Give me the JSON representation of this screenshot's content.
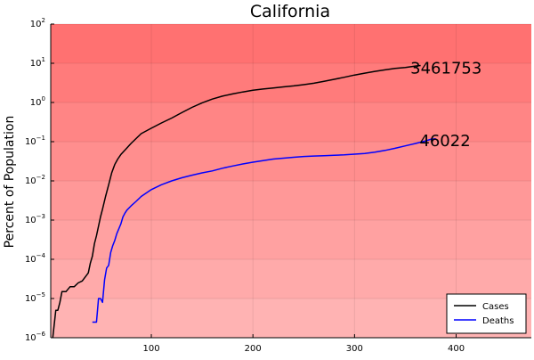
{
  "chart_data": {
    "type": "line",
    "title": "California",
    "xlabel": "",
    "ylabel": "Percent of Population",
    "x_scale": "linear",
    "y_scale": "log",
    "xlim": [
      1,
      474
    ],
    "ylim": [
      1e-06,
      100
    ],
    "x_ticks": [
      {
        "value": 100,
        "label": "100"
      },
      {
        "value": 200,
        "label": "200"
      },
      {
        "value": 300,
        "label": "300"
      },
      {
        "value": 400,
        "label": "400"
      }
    ],
    "y_ticks": [
      {
        "value": 1e-06,
        "base": "10",
        "exp": "−6"
      },
      {
        "value": 1e-05,
        "base": "10",
        "exp": "−5"
      },
      {
        "value": 0.0001,
        "base": "10",
        "exp": "−4"
      },
      {
        "value": 0.001,
        "base": "10",
        "exp": "−3"
      },
      {
        "value": 0.01,
        "base": "10",
        "exp": "−2"
      },
      {
        "value": 0.1,
        "base": "10",
        "exp": "−1"
      },
      {
        "value": 1,
        "base": "10",
        "exp": "0"
      },
      {
        "value": 10,
        "base": "10",
        "exp": "1"
      },
      {
        "value": 100,
        "base": "10",
        "exp": "2"
      }
    ],
    "grid": true,
    "legend_position": "bottom-right",
    "background_bands": {
      "note": "red shaded bands, darker toward the top",
      "colors": [
        "#ffb3b3",
        "#ffaaaa",
        "#ffa1a1",
        "#ff9898",
        "#ff8e8e",
        "#ff8585",
        "#ff7b7b",
        "#ff7171"
      ],
      "top_color": "#ff6767"
    },
    "series": [
      {
        "name": "Cases",
        "color": "#000000",
        "x": [
          3,
          6,
          8,
          10,
          12,
          16,
          20,
          24,
          28,
          32,
          38,
          40,
          42,
          44,
          46,
          48,
          50,
          52,
          55,
          58,
          61,
          64,
          67,
          70,
          75,
          80,
          85,
          90,
          100,
          110,
          120,
          130,
          140,
          150,
          160,
          170,
          180,
          190,
          200,
          210,
          220,
          230,
          240,
          250,
          260,
          270,
          280,
          290,
          300,
          310,
          320,
          330,
          340,
          350,
          360,
          365
        ],
        "y": [
          1e-06,
          5e-06,
          5e-06,
          8e-06,
          1.5e-05,
          1.5e-05,
          2e-05,
          2e-05,
          2.5e-05,
          2.8e-05,
          4.5e-05,
          8e-05,
          0.00012,
          0.00025,
          0.0004,
          0.0007,
          0.0012,
          0.0019,
          0.004,
          0.008,
          0.016,
          0.026,
          0.036,
          0.047,
          0.065,
          0.09,
          0.12,
          0.16,
          0.22,
          0.3,
          0.4,
          0.55,
          0.75,
          0.98,
          1.22,
          1.45,
          1.65,
          1.85,
          2.05,
          2.2,
          2.35,
          2.5,
          2.65,
          2.85,
          3.1,
          3.45,
          3.9,
          4.4,
          5.0,
          5.6,
          6.2,
          6.8,
          7.4,
          7.8,
          8.5,
          8.76
        ]
      },
      {
        "name": "Deaths",
        "color": "#0000ff",
        "x": [
          42,
          46,
          48,
          50,
          52,
          54,
          56,
          58,
          60,
          62,
          64,
          66,
          68,
          70,
          72,
          74,
          76,
          80,
          85,
          90,
          100,
          110,
          120,
          130,
          140,
          150,
          160,
          170,
          180,
          190,
          200,
          210,
          220,
          230,
          240,
          250,
          260,
          270,
          280,
          290,
          300,
          310,
          320,
          330,
          340,
          350,
          360,
          370,
          375,
          380
        ],
        "y": [
          2.5e-06,
          2.5e-06,
          1e-05,
          1e-05,
          8e-06,
          3e-05,
          6e-05,
          7e-05,
          0.00015,
          0.00022,
          0.0003,
          0.00045,
          0.0006,
          0.0008,
          0.0012,
          0.0015,
          0.0018,
          0.0023,
          0.003,
          0.004,
          0.006,
          0.008,
          0.01,
          0.012,
          0.014,
          0.016,
          0.018,
          0.021,
          0.024,
          0.027,
          0.03,
          0.033,
          0.036,
          0.038,
          0.04,
          0.042,
          0.043,
          0.044,
          0.045,
          0.046,
          0.048,
          0.05,
          0.054,
          0.06,
          0.068,
          0.078,
          0.09,
          0.105,
          0.115,
          0.118
        ]
      }
    ],
    "annotations": [
      {
        "text": "3461753",
        "x": 355,
        "y": 8,
        "color": "#000000"
      },
      {
        "text": "46022",
        "x": 364,
        "y": 0.11,
        "color": "#000000"
      }
    ],
    "legend": {
      "entries": [
        {
          "label": "Cases",
          "color": "#000000"
        },
        {
          "label": "Deaths",
          "color": "#0000ff"
        }
      ]
    }
  }
}
